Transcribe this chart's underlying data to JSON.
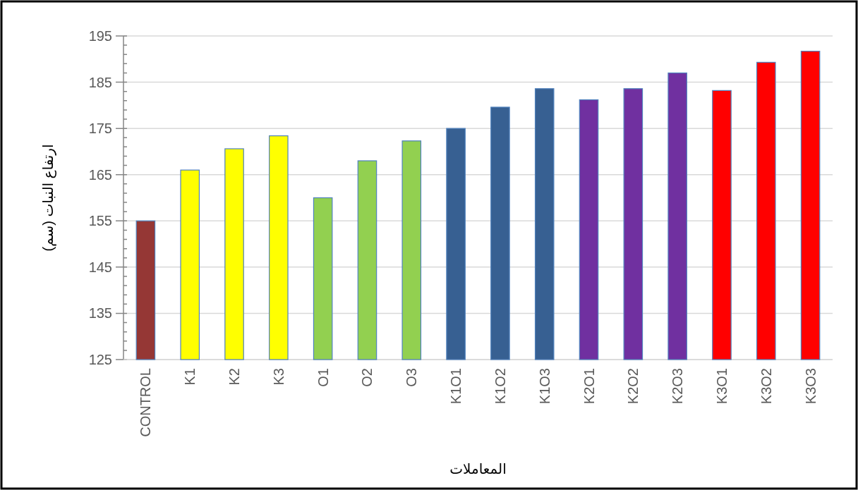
{
  "chart_data": {
    "type": "bar",
    "xlabel": "المعاملات",
    "ylabel": "ارتفاع النبات (سم)",
    "categories": [
      "CONTROL",
      "K1",
      "K2",
      "K3",
      "O1",
      "O2",
      "O3",
      "K1O1",
      "K1O2",
      "K1O3",
      "K2O1",
      "K2O2",
      "K2O3",
      "K3O1",
      "K3O2",
      "K3O3"
    ],
    "values": [
      155.0,
      166.0,
      170.6,
      173.4,
      160.0,
      168.0,
      172.3,
      175.0,
      179.6,
      183.6,
      181.2,
      183.6,
      187.0,
      183.2,
      189.3,
      191.7
    ],
    "colors": [
      "#953735",
      "#ffff00",
      "#ffff00",
      "#ffff00",
      "#92d050",
      "#92d050",
      "#92d050",
      "#376092",
      "#376092",
      "#376092",
      "#7030a0",
      "#7030a0",
      "#7030a0",
      "#ff0000",
      "#ff0000",
      "#ff0000"
    ],
    "ylim": [
      125,
      195
    ],
    "yticks": [
      125,
      {
        "value": 127,
        "label": null
      },
      {
        "value": 129,
        "label": null
      },
      {
        "value": 131,
        "label": null
      },
      {
        "value": 133,
        "label": null
      },
      135,
      {
        "value": 137,
        "label": null
      },
      {
        "value": 139,
        "label": null
      },
      {
        "value": 141,
        "label": null
      },
      {
        "value": 143,
        "label": null
      },
      145,
      {
        "value": 147,
        "label": null
      },
      {
        "value": 149,
        "label": null
      },
      {
        "value": 151,
        "label": null
      },
      {
        "value": 153,
        "label": null
      },
      155,
      {
        "value": 157,
        "label": null
      },
      {
        "value": 159,
        "label": null
      },
      {
        "value": 161,
        "label": null
      },
      {
        "value": 163,
        "label": null
      },
      165,
      {
        "value": 167,
        "label": null
      },
      {
        "value": 169,
        "label": null
      },
      {
        "value": 171,
        "label": null
      },
      {
        "value": 173,
        "label": null
      },
      175,
      {
        "value": 177,
        "label": null
      },
      {
        "value": 179,
        "label": null
      },
      {
        "value": 181,
        "label": null
      },
      {
        "value": 183,
        "label": null
      },
      185,
      {
        "value": 187,
        "label": null
      },
      {
        "value": 189,
        "label": null
      },
      {
        "value": 191,
        "label": null
      },
      {
        "value": 193,
        "label": null
      },
      195
    ],
    "grid": "y"
  }
}
